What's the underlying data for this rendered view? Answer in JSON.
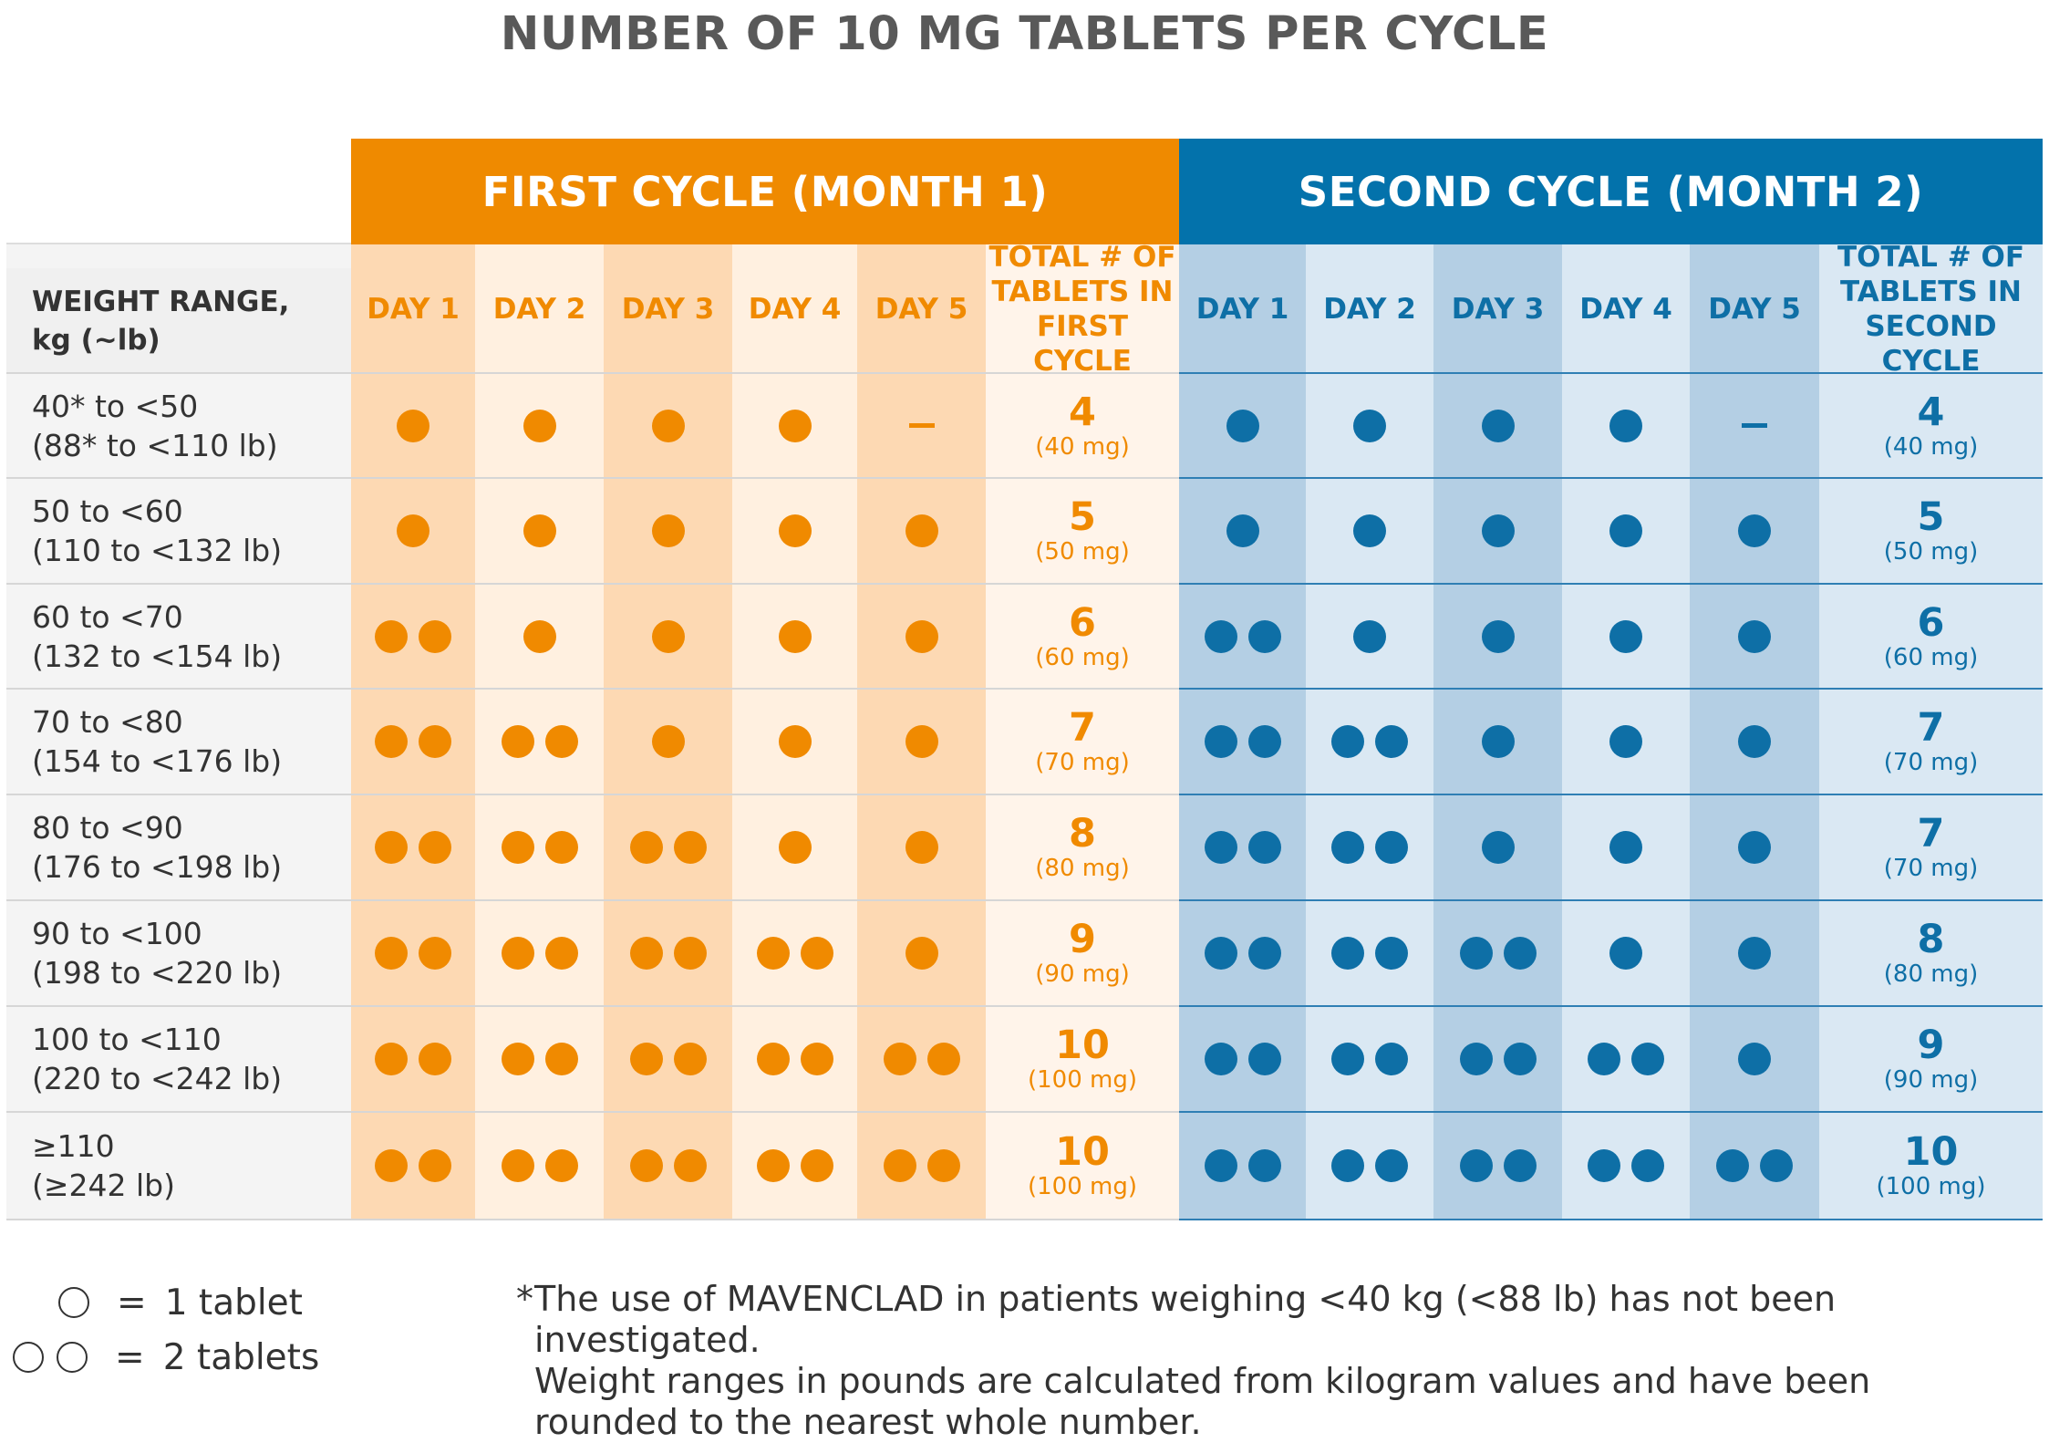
{
  "title": "NUMBER OF 10 MG TABLETS PER CYCLE",
  "colors": {
    "orange": "#f08a00",
    "blue": "#0e6fa6",
    "first_band": "#ef8a00",
    "second_band": "#0372ab"
  },
  "first_cycle": {
    "title": "FIRST CYCLE (MONTH 1)",
    "days": [
      "DAY 1",
      "DAY 2",
      "DAY 3",
      "DAY 4",
      "DAY 5"
    ],
    "total_label": [
      "TOTAL # OF",
      "TABLETS IN",
      "FIRST CYCLE"
    ]
  },
  "second_cycle": {
    "title": "SECOND CYCLE (MONTH 2)",
    "days": [
      "DAY 1",
      "DAY 2",
      "DAY 3",
      "DAY 4",
      "DAY 5"
    ],
    "total_label": [
      "TOTAL # OF",
      "TABLETS IN",
      "SECOND CYCLE"
    ]
  },
  "weight_header": [
    "WEIGHT RANGE,",
    "kg (~lb)"
  ],
  "rows": [
    {
      "kg": "40* to <50",
      "lb": "(88* to <110 lb)",
      "first": [
        1,
        1,
        1,
        1,
        0
      ],
      "first_total": "4",
      "first_mg": "(40 mg)",
      "second": [
        1,
        1,
        1,
        1,
        0
      ],
      "second_total": "4",
      "second_mg": "(40 mg)"
    },
    {
      "kg": "50 to <60",
      "lb": "(110 to <132 lb)",
      "first": [
        1,
        1,
        1,
        1,
        1
      ],
      "first_total": "5",
      "first_mg": "(50 mg)",
      "second": [
        1,
        1,
        1,
        1,
        1
      ],
      "second_total": "5",
      "second_mg": "(50 mg)"
    },
    {
      "kg": "60 to <70",
      "lb": "(132 to <154 lb)",
      "first": [
        2,
        1,
        1,
        1,
        1
      ],
      "first_total": "6",
      "first_mg": "(60 mg)",
      "second": [
        2,
        1,
        1,
        1,
        1
      ],
      "second_total": "6",
      "second_mg": "(60 mg)"
    },
    {
      "kg": "70 to <80",
      "lb": "(154 to <176 lb)",
      "first": [
        2,
        2,
        1,
        1,
        1
      ],
      "first_total": "7",
      "first_mg": "(70 mg)",
      "second": [
        2,
        2,
        1,
        1,
        1
      ],
      "second_total": "7",
      "second_mg": "(70 mg)"
    },
    {
      "kg": "80 to <90",
      "lb": "(176 to <198 lb)",
      "first": [
        2,
        2,
        2,
        1,
        1
      ],
      "first_total": "8",
      "first_mg": "(80 mg)",
      "second": [
        2,
        2,
        1,
        1,
        1
      ],
      "second_total": "7",
      "second_mg": "(70 mg)"
    },
    {
      "kg": "90 to <100",
      "lb": "(198 to <220 lb)",
      "first": [
        2,
        2,
        2,
        2,
        1
      ],
      "first_total": "9",
      "first_mg": "(90 mg)",
      "second": [
        2,
        2,
        2,
        1,
        1
      ],
      "second_total": "8",
      "second_mg": "(80 mg)"
    },
    {
      "kg": "100 to <110",
      "lb": "(220 to <242 lb)",
      "first": [
        2,
        2,
        2,
        2,
        2
      ],
      "first_total": "10",
      "first_mg": "(100 mg)",
      "second": [
        2,
        2,
        2,
        2,
        1
      ],
      "second_total": "9",
      "second_mg": "(90 mg)"
    },
    {
      "kg": "≥110",
      "lb": "(≥242 lb)",
      "first": [
        2,
        2,
        2,
        2,
        2
      ],
      "first_total": "10",
      "first_mg": "(100 mg)",
      "second": [
        2,
        2,
        2,
        2,
        2
      ],
      "second_total": "10",
      "second_mg": "(100 mg)"
    }
  ],
  "legend": {
    "one_eq": "=",
    "one_label": "1 tablet",
    "two_eq": "=",
    "two_label": "2 tablets"
  },
  "footnote": {
    "star": "*",
    "line1": "The use of MAVENCLAD in patients weighing <40 kg (<88 lb) has not been investigated.",
    "line2": "Weight ranges in pounds are calculated from kilogram values and have been",
    "line3": "rounded to the nearest whole number."
  }
}
